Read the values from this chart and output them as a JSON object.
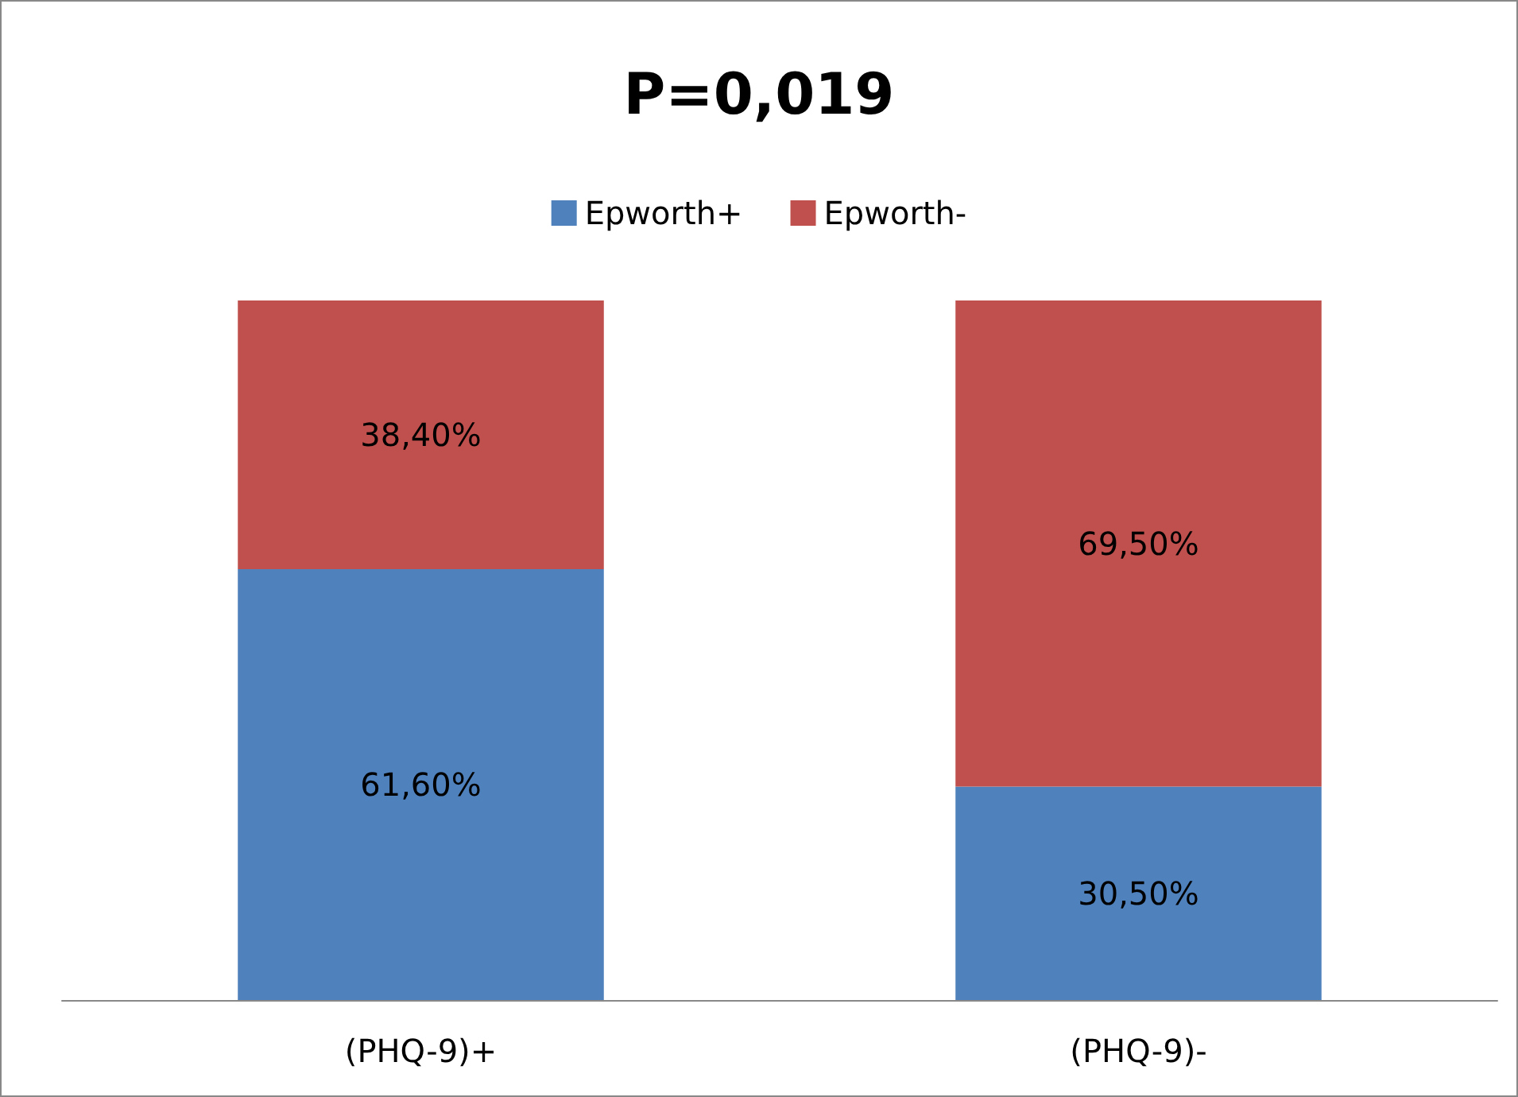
{
  "chart_data": {
    "type": "bar",
    "title": "P=0,019",
    "categories": [
      "(PHQ-9)+",
      "(PHQ-9)-"
    ],
    "stacked": true,
    "legend": "top",
    "series": [
      {
        "name": "Epworth+",
        "color": "#4f81bd",
        "values": [
          61.6,
          30.5
        ],
        "value_labels": [
          "61,60%",
          "30,50%"
        ]
      },
      {
        "name": "Epworth-",
        "color": "#c0504d",
        "values": [
          38.4,
          69.5
        ],
        "value_labels": [
          "38,40%",
          "69,50%"
        ]
      }
    ]
  }
}
